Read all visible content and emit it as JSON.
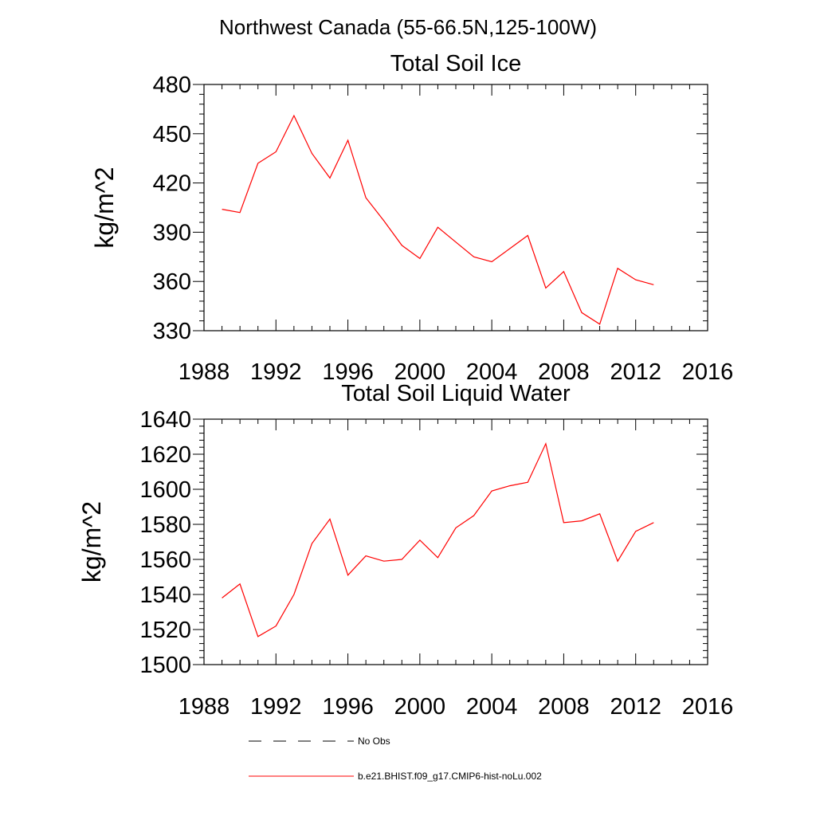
{
  "title": "Northwest Canada (55-66.5N,125-100W)",
  "colors": {
    "model": "#ff0000",
    "obs": "#000000",
    "axis": "#000000"
  },
  "chart_data": [
    {
      "type": "line",
      "title": "Total Soil Ice",
      "xlabel": "",
      "ylabel": "kg/m^2",
      "xlim": [
        1988,
        2016
      ],
      "ylim": [
        330,
        480
      ],
      "x_ticks": [
        "1988",
        "1992",
        "1996",
        "2000",
        "2004",
        "2008",
        "2012",
        "2016"
      ],
      "y_ticks": [
        "330",
        "360",
        "390",
        "420",
        "450",
        "480"
      ],
      "grid": false,
      "series": [
        {
          "name": "b.e21.BHIST.f09_g17.CMIP6-hist-noLu.002",
          "x": [
            1989,
            1990,
            1991,
            1992,
            1993,
            1994,
            1995,
            1996,
            1997,
            1998,
            1999,
            2000,
            2001,
            2002,
            2003,
            2004,
            2005,
            2006,
            2007,
            2008,
            2009,
            2010,
            2011,
            2012,
            2013
          ],
          "values": [
            404,
            402,
            432,
            439,
            461,
            438,
            423,
            446,
            411,
            397,
            382,
            374,
            393,
            384,
            375,
            372,
            380,
            388,
            356,
            366,
            341,
            334,
            368,
            361,
            358
          ]
        }
      ]
    },
    {
      "type": "line",
      "title": "Total Soil Liquid Water",
      "xlabel": "",
      "ylabel": "kg/m^2",
      "xlim": [
        1988,
        2016
      ],
      "ylim": [
        1500,
        1640
      ],
      "x_ticks": [
        "1988",
        "1992",
        "1996",
        "2000",
        "2004",
        "2008",
        "2012",
        "2016"
      ],
      "y_ticks": [
        "1500",
        "1520",
        "1540",
        "1560",
        "1580",
        "1600",
        "1620",
        "1640"
      ],
      "grid": false,
      "series": [
        {
          "name": "b.e21.BHIST.f09_g17.CMIP6-hist-noLu.002",
          "x": [
            1989,
            1990,
            1991,
            1992,
            1993,
            1994,
            1995,
            1996,
            1997,
            1998,
            1999,
            2000,
            2001,
            2002,
            2003,
            2004,
            2005,
            2006,
            2007,
            2008,
            2009,
            2010,
            2011,
            2012,
            2013
          ],
          "values": [
            1538,
            1546,
            1516,
            1522,
            1540,
            1569,
            1583,
            1551,
            1562,
            1559,
            1560,
            1571,
            1561,
            1578,
            1585,
            1599,
            1602,
            1604,
            1626,
            1581,
            1582,
            1586,
            1559,
            1576,
            1581
          ]
        }
      ]
    }
  ],
  "legend": {
    "placement": "bottom",
    "items": [
      {
        "label": "No Obs",
        "style": "dashed",
        "color": "#000000"
      },
      {
        "label": "b.e21.BHIST.f09_g17.CMIP6-hist-noLu.002",
        "style": "solid",
        "color": "#ff0000"
      }
    ]
  }
}
